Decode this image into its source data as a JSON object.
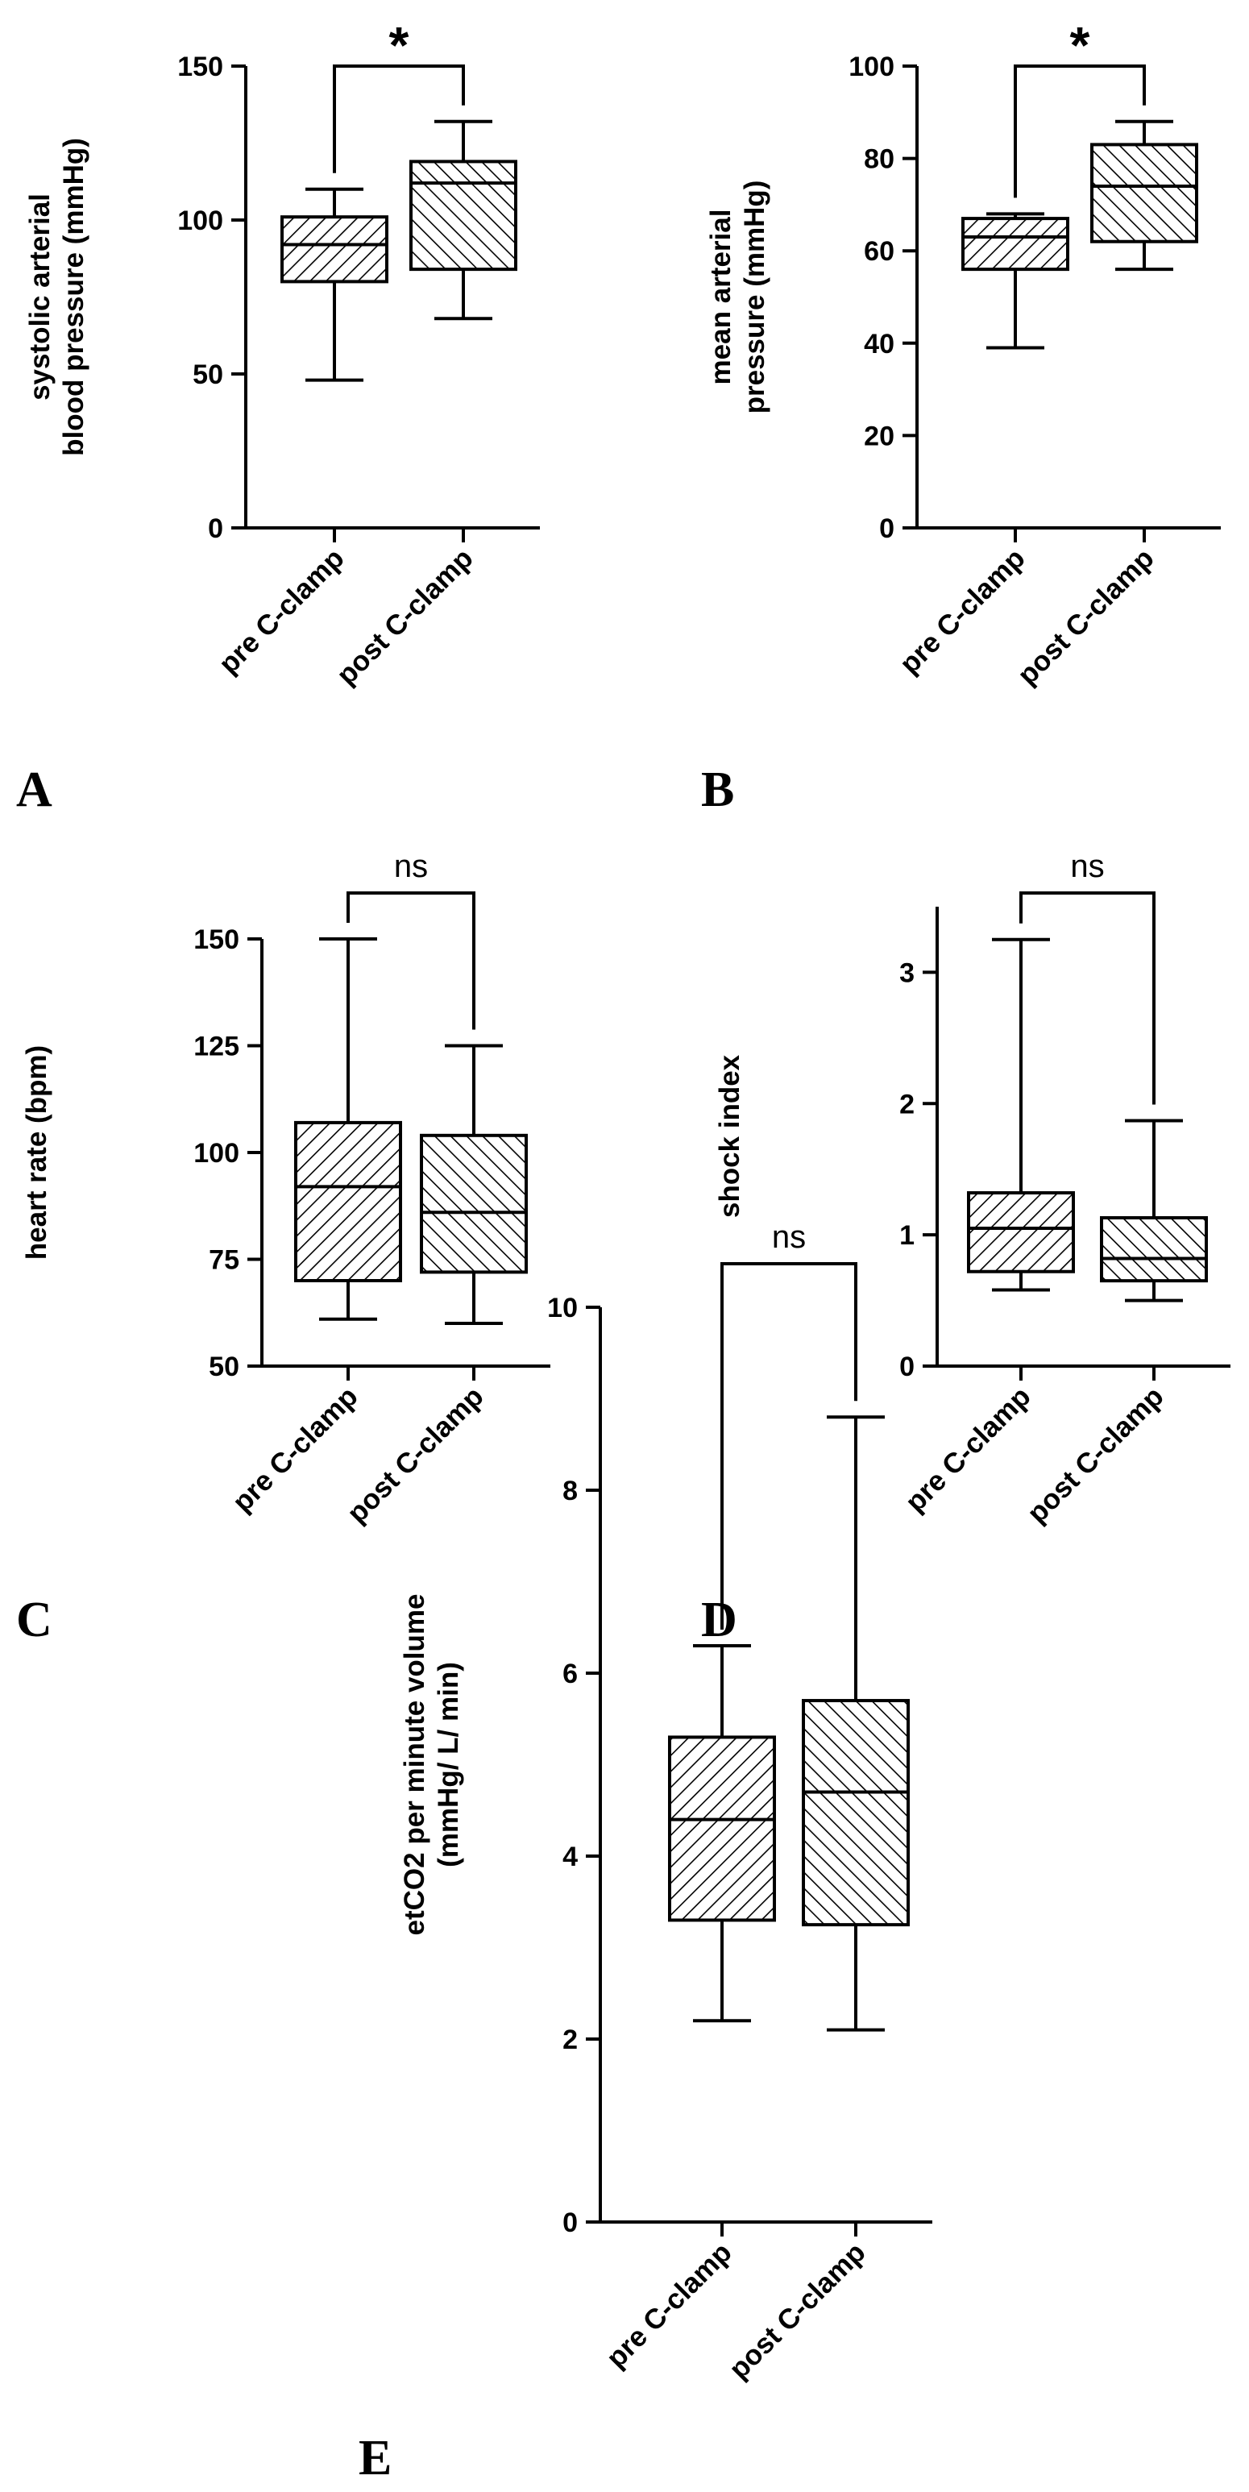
{
  "chart_data": [
    {
      "panel": "A",
      "type": "boxplot",
      "ylabel": [
        "systolic arterial",
        "blood pressure (mmHg)"
      ],
      "ylim": [
        0,
        150
      ],
      "yticks": [
        0,
        50,
        100,
        150
      ],
      "categories": [
        "pre C-clamp",
        "post C-clamp"
      ],
      "boxes": [
        {
          "min": 48,
          "q1": 80,
          "median": 92,
          "q3": 101,
          "max": 110,
          "hatch": "forward"
        },
        {
          "min": 68,
          "q1": 84,
          "median": 112,
          "q3": 119,
          "max": 132,
          "hatch": "backward"
        }
      ],
      "significance": "*"
    },
    {
      "panel": "B",
      "type": "boxplot",
      "ylabel": [
        "mean arterial",
        "pressure (mmHg)"
      ],
      "ylim": [
        0,
        100
      ],
      "yticks": [
        0,
        20,
        40,
        60,
        80,
        100
      ],
      "categories": [
        "pre C-clamp",
        "post C-clamp"
      ],
      "boxes": [
        {
          "min": 39,
          "q1": 56,
          "median": 63,
          "q3": 67,
          "max": 68,
          "hatch": "forward"
        },
        {
          "min": 56,
          "q1": 62,
          "median": 74,
          "q3": 83,
          "max": 88,
          "hatch": "backward"
        }
      ],
      "significance": "*"
    },
    {
      "panel": "C",
      "type": "boxplot",
      "ylabel": [
        "heart rate (bpm)"
      ],
      "ylim": [
        50,
        150
      ],
      "yticks": [
        50,
        75,
        100,
        125,
        150
      ],
      "categories": [
        "pre C-clamp",
        "post C-clamp"
      ],
      "boxes": [
        {
          "min": 61,
          "q1": 70,
          "median": 92,
          "q3": 107,
          "max": 150,
          "hatch": "forward"
        },
        {
          "min": 60,
          "q1": 72,
          "median": 86,
          "q3": 104,
          "max": 125,
          "hatch": "backward"
        }
      ],
      "significance": "ns"
    },
    {
      "panel": "D",
      "type": "boxplot",
      "ylabel": [
        "shock index"
      ],
      "ylim": [
        0,
        3.5
      ],
      "yticks": [
        0,
        1,
        2,
        3
      ],
      "categories": [
        "pre C-clamp",
        "post C-clamp"
      ],
      "boxes": [
        {
          "min": 0.58,
          "q1": 0.72,
          "median": 1.05,
          "q3": 1.32,
          "max": 3.25,
          "hatch": "forward"
        },
        {
          "min": 0.5,
          "q1": 0.65,
          "median": 0.82,
          "q3": 1.13,
          "max": 1.87,
          "hatch": "backward"
        }
      ],
      "significance": "ns"
    },
    {
      "panel": "E",
      "type": "boxplot",
      "ylabel": [
        "etCO2 per minute volume",
        "(mmHg/ L/ min)"
      ],
      "ylim": [
        0,
        10
      ],
      "yticks": [
        0,
        2,
        4,
        6,
        8,
        10
      ],
      "categories": [
        "pre C-clamp",
        "post C-clamp"
      ],
      "boxes": [
        {
          "min": 2.2,
          "q1": 3.3,
          "median": 4.4,
          "q3": 5.3,
          "max": 6.3,
          "hatch": "forward"
        },
        {
          "min": 2.1,
          "q1": 3.25,
          "median": 4.7,
          "q3": 5.7,
          "max": 8.8,
          "hatch": "backward"
        }
      ],
      "significance": "ns"
    }
  ]
}
